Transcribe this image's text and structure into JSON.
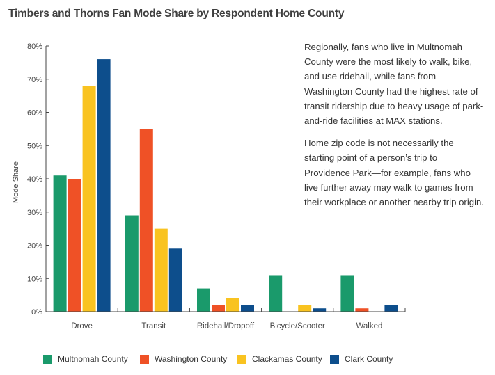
{
  "chart_data": {
    "type": "bar",
    "title": "Timbers and Thorns Fan Mode Share by Respondent Home County",
    "xlabel": "",
    "ylabel": "Mode Share",
    "ylim": [
      0,
      80
    ],
    "yticks": [
      "0%",
      "10%",
      "20%",
      "30%",
      "40%",
      "50%",
      "60%",
      "70%",
      "80%"
    ],
    "categories": [
      "Drove",
      "Transit",
      "Ridehail/Dropoff",
      "Bicycle/Scooter",
      "Walked"
    ],
    "series": [
      {
        "name": "Multnomah County",
        "color": "#1a9a6b",
        "values": [
          41,
          29,
          7,
          11,
          11
        ]
      },
      {
        "name": "Washington County",
        "color": "#ef5126",
        "values": [
          40,
          55,
          2,
          0,
          1
        ]
      },
      {
        "name": "Clackamas County",
        "color": "#f9c320",
        "values": [
          68,
          25,
          4,
          2,
          0
        ]
      },
      {
        "name": "Clark County",
        "color": "#0d4e8c",
        "values": [
          76,
          19,
          2,
          1,
          2
        ]
      }
    ],
    "grid": false,
    "legend_position": "bottom"
  },
  "text": {
    "paragraph1": "Regionally, fans who live in Multnomah County were the most likely to walk, bike, and use ridehail, while fans from Washington County had the highest rate of transit ridership due to heavy usage of park-and-ride facilities at MAX stations.",
    "paragraph2": "Home zip code is not necessarily the starting point of a person’s trip to Providence Park—for example, fans who live further away may walk to games from their workplace or another nearby trip origin."
  },
  "colors": {
    "axis": "#444444"
  }
}
